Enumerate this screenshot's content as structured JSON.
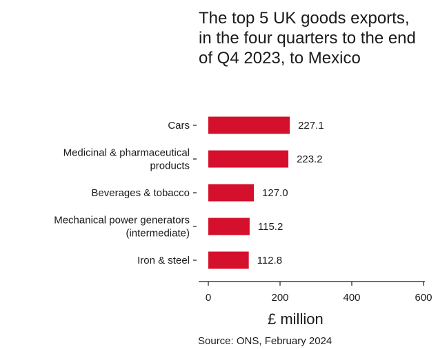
{
  "chart_data": {
    "type": "bar",
    "orientation": "horizontal",
    "title": "The top 5 UK goods exports, in the four quarters to the end of Q4 2023, to Mexico",
    "categories": [
      [
        "Cars"
      ],
      [
        "Medicinal & pharmaceutical",
        "products"
      ],
      [
        "Beverages & tobacco"
      ],
      [
        "Mechanical power generators",
        "(intermediate)"
      ],
      [
        "Iron & steel"
      ]
    ],
    "values": [
      227.1,
      223.2,
      127.0,
      115.2,
      112.8
    ],
    "value_labels": [
      "227.1",
      "223.2",
      "127.0",
      "115.2",
      "112.8"
    ],
    "xlabel": "£ million",
    "xlim": [
      0,
      600
    ],
    "xticks": [
      0,
      200,
      400,
      600
    ],
    "xtick_labels": [
      "0",
      "200",
      "400",
      "600"
    ],
    "bar_color": "#d4102c",
    "grid": false,
    "source": "Source: ONS, February 2024"
  }
}
